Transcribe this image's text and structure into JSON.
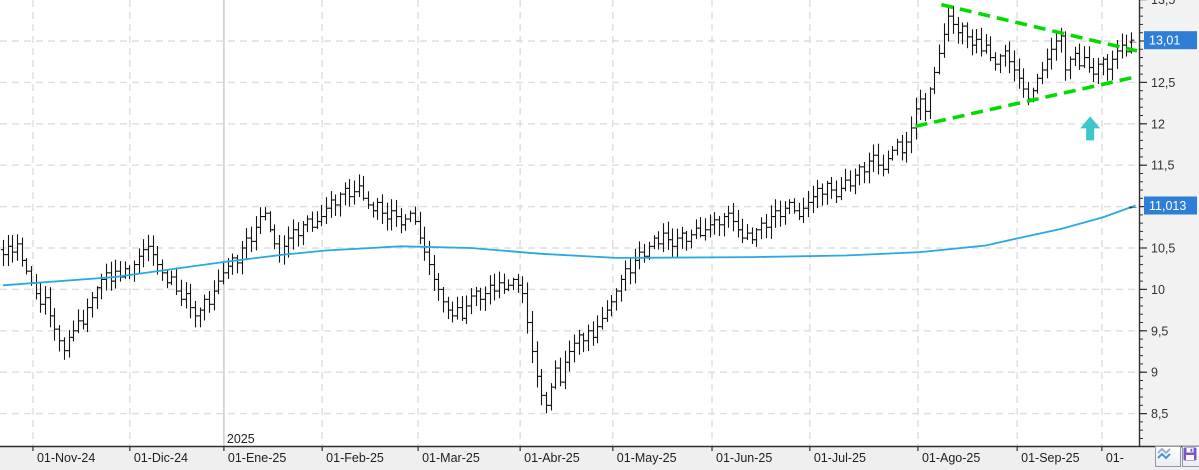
{
  "window": {
    "background": "#ffffff"
  },
  "chart_data": {
    "type": "ohlc",
    "description": "Daily OHLC stock chart with moving average, converging green dashed triangle pattern and buy-signal arrow",
    "last_price": {
      "label": "13,01",
      "value": 13.01
    },
    "moving_average": {
      "label": "11,013",
      "value": 11.013,
      "points": [
        [
          0,
          10.05
        ],
        [
          24,
          10.15
        ],
        [
          47,
          10.33
        ],
        [
          60,
          10.42
        ],
        [
          69,
          10.47
        ],
        [
          85,
          10.52
        ],
        [
          100,
          10.5
        ],
        [
          115,
          10.43
        ],
        [
          131,
          10.38
        ],
        [
          160,
          10.39
        ],
        [
          180,
          10.41
        ],
        [
          196,
          10.45
        ],
        [
          210,
          10.53
        ],
        [
          217,
          10.62
        ],
        [
          226,
          10.73
        ],
        [
          235,
          10.87
        ],
        [
          242,
          11.013
        ]
      ]
    },
    "y_ticks": [
      {
        "label": "13,5",
        "value": 13.5
      },
      {
        "label": "13",
        "value": 13
      },
      {
        "label": "12,5",
        "value": 12.5
      },
      {
        "label": "12",
        "value": 12
      },
      {
        "label": "11,5",
        "value": 11.5
      },
      {
        "label": "11",
        "value": 11
      },
      {
        "label": "10,5",
        "value": 10.5
      },
      {
        "label": "10",
        "value": 10
      },
      {
        "label": "9,5",
        "value": 9.5
      },
      {
        "label": "9",
        "value": 9
      },
      {
        "label": "8,5",
        "value": 8.5
      }
    ],
    "minor_tick_step": 0.1,
    "ylim": [
      8.11,
      13.5
    ],
    "x_ticks": [
      {
        "label": "01-Nov-24",
        "index": 6.4
      },
      {
        "label": "01-Dic-24",
        "index": 27.1
      },
      {
        "label": "01-Ene-25",
        "index": 47.2,
        "year_divider": true
      },
      {
        "label": "01-Feb-25",
        "index": 68.2
      },
      {
        "label": "01-Mar-25",
        "index": 88.7
      },
      {
        "label": "01-Abr-25",
        "index": 110.5
      },
      {
        "label": "01-May-25",
        "index": 130.3
      },
      {
        "label": "01-Jun-25",
        "index": 151.5
      },
      {
        "label": "01-Jul-25",
        "index": 172.4
      },
      {
        "label": "01-Ago-25",
        "index": 195.5
      },
      {
        "label": "01-Sep-25",
        "index": 216.7
      },
      {
        "label": "01-",
        "index": 234.8
      }
    ],
    "year_label": "2025",
    "closes": [
      10.42,
      10.52,
      10.45,
      10.55,
      10.35,
      10.22,
      10.08,
      9.95,
      9.82,
      9.9,
      9.68,
      9.52,
      9.38,
      9.26,
      9.42,
      9.5,
      9.62,
      9.58,
      9.78,
      9.9,
      10.02,
      10.12,
      10.2,
      10.1,
      10.22,
      10.15,
      10.25,
      10.18,
      10.3,
      10.4,
      10.48,
      10.52,
      10.42,
      10.3,
      10.2,
      10.08,
      10.15,
      9.98,
      9.88,
      9.95,
      9.78,
      9.68,
      9.75,
      9.88,
      9.82,
      9.98,
      10.1,
      10.2,
      10.28,
      10.38,
      10.32,
      10.5,
      10.62,
      10.58,
      10.75,
      10.88,
      10.92,
      10.72,
      10.55,
      10.42,
      10.52,
      10.62,
      10.72,
      10.65,
      10.78,
      10.85,
      10.75,
      10.82,
      10.88,
      10.98,
      11.08,
      11.02,
      11.15,
      11.22,
      11.12,
      11.18,
      11.25,
      11.1,
      11.02,
      10.95,
      11.05,
      10.92,
      10.85,
      10.95,
      10.88,
      10.78,
      10.85,
      10.92,
      10.82,
      10.62,
      10.45,
      10.3,
      10.12,
      10.0,
      9.85,
      9.75,
      9.68,
      9.78,
      9.65,
      9.8,
      9.92,
      9.98,
      9.88,
      9.95,
      10.05,
      9.98,
      10.08,
      10.0,
      10.05,
      10.12,
      10.05,
      9.95,
      9.6,
      9.25,
      8.95,
      8.72,
      8.6,
      8.82,
      9.05,
      8.88,
      9.12,
      9.25,
      9.35,
      9.45,
      9.38,
      9.5,
      9.42,
      9.55,
      9.65,
      9.75,
      9.85,
      9.98,
      10.12,
      10.25,
      10.2,
      10.35,
      10.45,
      10.4,
      10.52,
      10.62,
      10.55,
      10.68,
      10.6,
      10.52,
      10.62,
      10.68,
      10.58,
      10.66,
      10.74,
      10.65,
      10.72,
      10.78,
      10.84,
      10.78,
      10.88,
      10.92,
      10.82,
      10.72,
      10.62,
      10.68,
      10.6,
      10.72,
      10.8,
      10.75,
      10.88,
      10.95,
      10.88,
      10.98,
      11.05,
      10.95,
      10.88,
      10.98,
      11.05,
      11.12,
      11.22,
      11.15,
      11.28,
      11.2,
      11.12,
      11.22,
      11.32,
      11.25,
      11.38,
      11.48,
      11.42,
      11.55,
      11.62,
      11.5,
      11.45,
      11.58,
      11.68,
      11.78,
      11.65,
      11.78,
      11.95,
      12.18,
      12.3,
      12.15,
      12.42,
      12.62,
      12.85,
      13.08,
      13.3,
      13.2,
      13.1,
      13.18,
      13.05,
      12.95,
      13.02,
      12.88,
      12.95,
      12.8,
      12.72,
      12.82,
      12.88,
      12.75,
      12.65,
      12.55,
      12.42,
      12.3,
      12.4,
      12.55,
      12.65,
      12.78,
      12.9,
      13.0,
      13.06,
      12.65,
      12.78,
      12.85,
      12.7,
      12.8,
      12.68,
      12.6,
      12.72,
      12.78,
      12.66,
      12.78,
      12.88,
      12.95,
      12.87,
      13.01
    ],
    "pattern_lines": {
      "upper": [
        [
          200.5,
          13.44
        ],
        [
          243.5,
          12.88
        ]
      ],
      "lower": [
        [
          195.0,
          11.97
        ],
        [
          242.5,
          12.57
        ]
      ]
    },
    "signal_arrow": {
      "index": 232.3,
      "price": 12.09
    },
    "colors": {
      "bar": "#161616",
      "moving_average": "#27a9e1",
      "pattern": "#00dc00",
      "arrow": "#3ec6cb",
      "price_tag_bg": "#2e7dd7",
      "price_tag_text": "#ffffff",
      "grid": "#dedede",
      "year_line": "#d0d0d0",
      "axis": "#2f2f2f",
      "axis_text": "#333333",
      "x_strip_bg": "#efefef",
      "y_strip_bg": "#f2f2f3"
    }
  },
  "footer": {
    "buttons": [
      {
        "name": "chart-lines",
        "icon": "zigzag-icon"
      },
      {
        "name": "save",
        "icon": "floppy-icon"
      }
    ]
  }
}
